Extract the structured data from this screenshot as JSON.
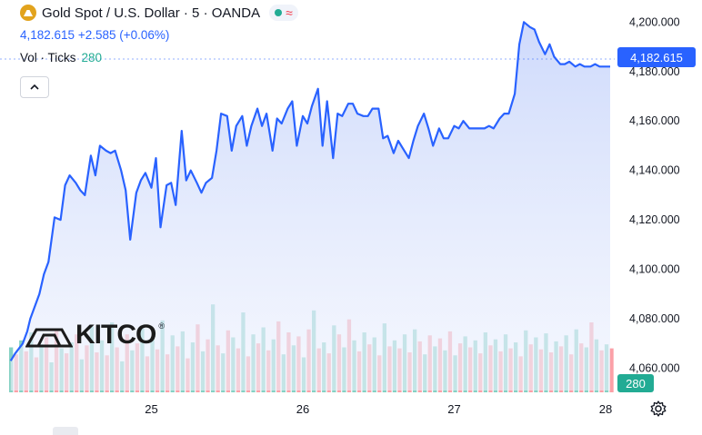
{
  "header": {
    "title": "Gold Spot / U.S. Dollar · 5 · OANDA",
    "status_icon": "green-dot-icon",
    "mode_icon": "wave-icon",
    "last": "4,182.615",
    "change": "+2.585",
    "change_pct": "(+0.06%)"
  },
  "volume_legend": {
    "label": "Vol · Ticks",
    "value": "280"
  },
  "watermark": "KITCO",
  "colors": {
    "line": "#2962ff",
    "area_top": "#c9d6fb",
    "up_volume": "#22ab94",
    "down_volume": "#f7525f",
    "price_tag": "#2962ff",
    "volume_tag": "#22ab94"
  },
  "chart_data": {
    "type": "area",
    "title": "Gold Spot / U.S. Dollar · 5 · OANDA",
    "xlabel": "",
    "ylabel": "",
    "x_ticks": [
      "25",
      "26",
      "27",
      "28"
    ],
    "y_ticks": [
      "4,200.000",
      "4,180.000",
      "4,160.000",
      "4,140.000",
      "4,120.000",
      "4,100.000",
      "4,080.000",
      "4,060.000"
    ],
    "ylim": [
      4051,
      4206
    ],
    "x_domain_days": [
      24.06,
      28.06
    ],
    "grid": false,
    "legend": "none",
    "series": [
      {
        "name": "Gold Spot / U.S. Dollar",
        "x": [
          24.07,
          24.1,
          24.15,
          24.18,
          24.2,
          24.23,
          24.26,
          24.29,
          24.32,
          24.36,
          24.4,
          24.43,
          24.46,
          24.5,
          24.53,
          24.56,
          24.6,
          24.63,
          24.66,
          24.7,
          24.73,
          24.76,
          24.8,
          24.83,
          24.86,
          24.9,
          24.93,
          24.96,
          25.0,
          25.03,
          25.06,
          25.1,
          25.13,
          25.16,
          25.2,
          25.23,
          25.26,
          25.3,
          25.33,
          25.36,
          25.4,
          25.43,
          25.46,
          25.5,
          25.53,
          25.56,
          25.6,
          25.63,
          25.66,
          25.7,
          25.73,
          25.76,
          25.8,
          25.83,
          25.86,
          25.9,
          25.93,
          25.96,
          26.0,
          26.03,
          26.06,
          26.1,
          26.13,
          26.16,
          26.2,
          26.23,
          26.26,
          26.3,
          26.33,
          26.36,
          26.4,
          26.43,
          26.46,
          26.5,
          26.53,
          26.56,
          26.6,
          26.63,
          26.66,
          26.7,
          26.73,
          26.76,
          26.8,
          26.83,
          26.86,
          26.9,
          26.93,
          26.96,
          27.0,
          27.03,
          27.06,
          27.1,
          27.13,
          27.16,
          27.2,
          27.23,
          27.26,
          27.3,
          27.33,
          27.36,
          27.4,
          27.43,
          27.46,
          27.5,
          27.53,
          27.56,
          27.6,
          27.63,
          27.66,
          27.7,
          27.73,
          27.76,
          27.8,
          27.83,
          27.86,
          27.9,
          27.93,
          27.96,
          28.0,
          28.03
        ],
        "values": [
          4063,
          4066,
          4070,
          4075,
          4080,
          4085,
          4090,
          4098,
          4103,
          4121,
          4120,
          4134,
          4138,
          4135,
          4132,
          4130,
          4146,
          4138,
          4150,
          4148,
          4147,
          4148,
          4140,
          4132,
          4112,
          4131,
          4136,
          4139,
          4133,
          4145,
          4117,
          4134,
          4135,
          4126,
          4156,
          4136,
          4140,
          4135,
          4131,
          4135,
          4137,
          4148,
          4163,
          4162,
          4148,
          4158,
          4162,
          4150,
          4158,
          4165,
          4158,
          4163,
          4148,
          4161,
          4159,
          4165,
          4168,
          4150,
          4162,
          4159,
          4166,
          4173,
          4150,
          4168,
          4145,
          4163,
          4162,
          4167,
          4167,
          4163,
          4162,
          4162,
          4165,
          4165,
          4153,
          4154,
          4147,
          4152,
          4149,
          4145,
          4152,
          4158,
          4163,
          4157,
          4150,
          4157,
          4153,
          4153,
          4158,
          4157,
          4160,
          4157,
          4157,
          4157,
          4157,
          4158,
          4157,
          4161,
          4163,
          4163,
          4171,
          4191,
          4200,
          4198,
          4197,
          4192,
          4187,
          4191,
          4186,
          4183,
          4183,
          4184,
          4182,
          4183,
          4182,
          4182,
          4183,
          4182,
          4182,
          4182
        ]
      },
      {
        "name": "Vol · Ticks",
        "values": [
          45,
          38,
          52,
          41,
          60,
          35,
          48,
          55,
          30,
          62,
          44,
          39,
          50,
          58,
          33,
          47,
          66,
          40,
          52,
          37,
          70,
          45,
          31,
          58,
          42,
          49,
          64,
          36,
          55,
          43,
          72,
          38,
          57,
          46,
          61,
          34,
          50,
          68,
          41,
          53,
          88,
          47,
          39,
          62,
          55,
          44,
          80,
          36,
          58,
          49,
          65,
          42,
          53,
          71,
          38,
          60,
          47,
          56,
          35,
          63,
          82,
          44,
          50,
          39,
          67,
          58,
          45,
          73,
          52,
          41,
          60,
          48,
          55,
          37,
          69,
          46,
          52,
          44,
          58,
          40,
          63,
          51,
          38,
          57,
          46,
          54,
          42,
          61,
          37,
          49,
          56,
          45,
          52,
          39,
          60,
          47,
          53,
          41,
          58,
          44,
          50,
          36,
          62,
          48,
          55,
          43,
          59,
          40,
          51,
          46,
          57,
          38,
          63,
          49,
          45,
          70,
          53,
          42,
          48,
          44
        ]
      }
    ]
  }
}
